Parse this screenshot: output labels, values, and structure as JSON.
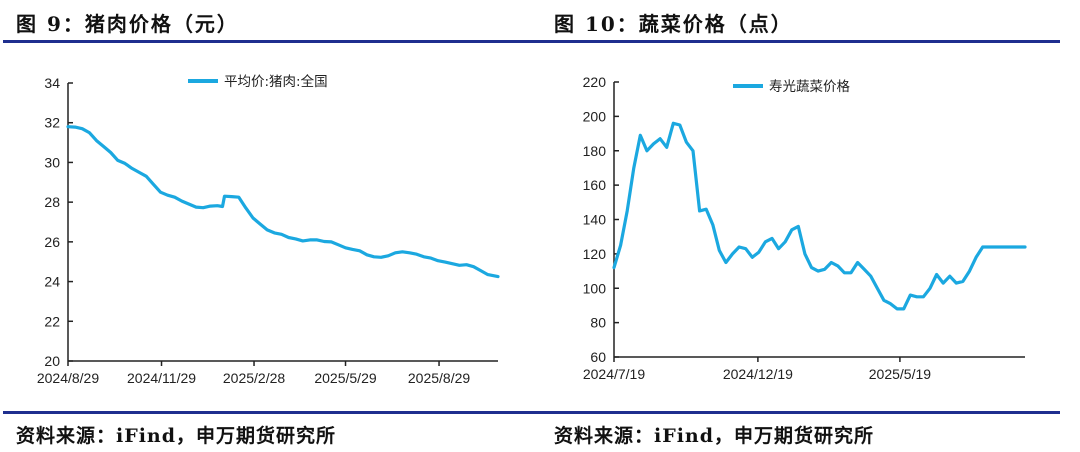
{
  "colors": {
    "line": "#1ba8e0",
    "rule": "#1f2f8f",
    "axis": "#222222"
  },
  "panels": [
    {
      "title": "图 9：猪肉价格（元）",
      "source": "资料来源：iFind，申万期货研究所"
    },
    {
      "title": "图 10：蔬菜价格（点）",
      "source": "资料来源：iFind，申万期货研究所"
    }
  ],
  "chart_data": [
    {
      "type": "line",
      "title": "图 9：猪肉价格（元）",
      "xlabel": "",
      "ylabel": "",
      "ylim": [
        20,
        34
      ],
      "yticks": [
        20,
        22,
        24,
        26,
        28,
        30,
        32,
        34
      ],
      "xticks": [
        "2024/8/29",
        "2024/11/29",
        "2025/2/28",
        "2025/5/29",
        "2025/8/29"
      ],
      "x_range_days": [
        0,
        423
      ],
      "xtick_days": [
        0,
        92,
        183,
        273,
        365
      ],
      "legend": "top-center",
      "grid": false,
      "series": [
        {
          "name": "平均价:猪肉:全国",
          "x_days": [
            0,
            7,
            14,
            21,
            28,
            35,
            42,
            49,
            56,
            63,
            70,
            77,
            84,
            91,
            98,
            105,
            112,
            119,
            126,
            133,
            140,
            147,
            152,
            154,
            161,
            168,
            175,
            182,
            189,
            196,
            203,
            210,
            217,
            224,
            231,
            238,
            245,
            252,
            259,
            266,
            273,
            280,
            287,
            294,
            301,
            308,
            315,
            322,
            329,
            336,
            343,
            350,
            357,
            364,
            371,
            378,
            385,
            392,
            399,
            406,
            413,
            423
          ],
          "values": [
            31.8,
            31.78,
            31.7,
            31.5,
            31.1,
            30.8,
            30.5,
            30.1,
            29.95,
            29.7,
            29.5,
            29.3,
            28.9,
            28.5,
            28.35,
            28.25,
            28.05,
            27.9,
            27.75,
            27.72,
            27.8,
            27.82,
            27.78,
            28.3,
            28.28,
            28.25,
            27.7,
            27.2,
            26.9,
            26.6,
            26.45,
            26.38,
            26.22,
            26.15,
            26.05,
            26.1,
            26.1,
            26.02,
            26.0,
            25.85,
            25.7,
            25.62,
            25.55,
            25.35,
            25.25,
            25.22,
            25.3,
            25.45,
            25.5,
            25.45,
            25.38,
            25.25,
            25.18,
            25.05,
            24.98,
            24.9,
            24.82,
            24.85,
            24.75,
            24.55,
            24.35,
            24.25
          ]
        }
      ]
    },
    {
      "type": "line",
      "title": "图 10：蔬菜价格（点）",
      "xlabel": "",
      "ylabel": "",
      "ylim": [
        60,
        220
      ],
      "yticks": [
        60,
        80,
        100,
        120,
        140,
        160,
        180,
        200,
        220
      ],
      "xticks": [
        "2024/7/19",
        "2024/12/19",
        "2025/5/19"
      ],
      "x_range_days": [
        0,
        437
      ],
      "xtick_days": [
        0,
        153,
        304
      ],
      "legend": "top-center",
      "grid": false,
      "series": [
        {
          "name": "寿光蔬菜价格",
          "x_days": [
            0,
            7,
            14,
            21,
            28,
            35,
            42,
            49,
            56,
            63,
            70,
            77,
            84,
            91,
            98,
            105,
            112,
            119,
            126,
            133,
            140,
            147,
            154,
            161,
            168,
            175,
            182,
            189,
            196,
            203,
            210,
            217,
            224,
            231,
            238,
            245,
            252,
            259,
            266,
            273,
            280,
            287,
            294,
            301,
            308,
            315,
            322,
            329,
            336,
            343,
            350,
            357,
            364,
            371,
            378,
            385,
            392,
            399,
            406,
            413,
            420,
            427,
            437
          ],
          "values": [
            112,
            125,
            145,
            170,
            189,
            180,
            184,
            187,
            182,
            196,
            195,
            185,
            180,
            145,
            146,
            137,
            122,
            115,
            120,
            124,
            123,
            118,
            121,
            127,
            129,
            123,
            127,
            134,
            136,
            120,
            112,
            110,
            111,
            115,
            113,
            109,
            109,
            115,
            111,
            107,
            100,
            93,
            91,
            88,
            88,
            96,
            95,
            95,
            100,
            108,
            103,
            107,
            103,
            104,
            110,
            118,
            124,
            124,
            124,
            124,
            124,
            124,
            124
          ]
        }
      ]
    }
  ]
}
